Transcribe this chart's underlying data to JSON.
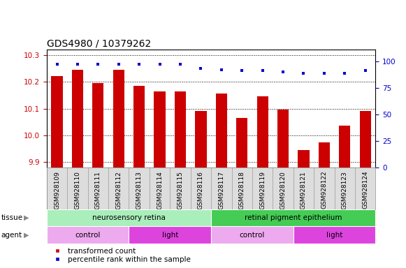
{
  "title": "GDS4980 / 10379262",
  "samples": [
    "GSM928109",
    "GSM928110",
    "GSM928111",
    "GSM928112",
    "GSM928113",
    "GSM928114",
    "GSM928115",
    "GSM928116",
    "GSM928117",
    "GSM928118",
    "GSM928119",
    "GSM928120",
    "GSM928121",
    "GSM928122",
    "GSM928123",
    "GSM928124"
  ],
  "transformed_count": [
    10.22,
    10.245,
    10.195,
    10.245,
    10.185,
    10.165,
    10.165,
    10.09,
    10.155,
    10.065,
    10.145,
    10.095,
    9.945,
    9.975,
    10.035,
    10.09
  ],
  "percentile_rank": [
    97,
    97,
    97,
    97,
    97,
    97,
    97,
    93,
    92,
    91,
    91,
    90,
    89,
    89,
    89,
    91
  ],
  "ylim_left": [
    9.88,
    10.32
  ],
  "ylim_right": [
    0,
    111
  ],
  "yticks_left": [
    9.9,
    10.0,
    10.1,
    10.2,
    10.3
  ],
  "yticks_right": [
    0,
    25,
    50,
    75,
    100
  ],
  "bar_color": "#cc0000",
  "dot_color": "#0000cc",
  "grid_color": "#000000",
  "tissue_groups": [
    {
      "label": "neurosensory retina",
      "start": 0,
      "end": 8,
      "color": "#aaeebb"
    },
    {
      "label": "retinal pigment epithelium",
      "start": 8,
      "end": 16,
      "color": "#44cc55"
    }
  ],
  "agent_groups": [
    {
      "label": "control",
      "start": 0,
      "end": 4,
      "color": "#eeaaee"
    },
    {
      "label": "light",
      "start": 4,
      "end": 8,
      "color": "#dd44dd"
    },
    {
      "label": "control",
      "start": 8,
      "end": 12,
      "color": "#eeaaee"
    },
    {
      "label": "light",
      "start": 12,
      "end": 16,
      "color": "#dd44dd"
    }
  ],
  "legend_items": [
    {
      "label": "transformed count",
      "color": "#cc0000"
    },
    {
      "label": "percentile rank within the sample",
      "color": "#0000cc"
    }
  ],
  "tissue_label": "tissue",
  "agent_label": "agent",
  "xlabel_fontsize": 6.5,
  "title_fontsize": 10,
  "tick_fontsize": 7.5,
  "left_tick_color": "#cc0000",
  "right_tick_color": "#0000cc",
  "label_row_color": "#dddddd",
  "plot_bg_color": "#ffffff",
  "fig_bg_color": "#ffffff"
}
